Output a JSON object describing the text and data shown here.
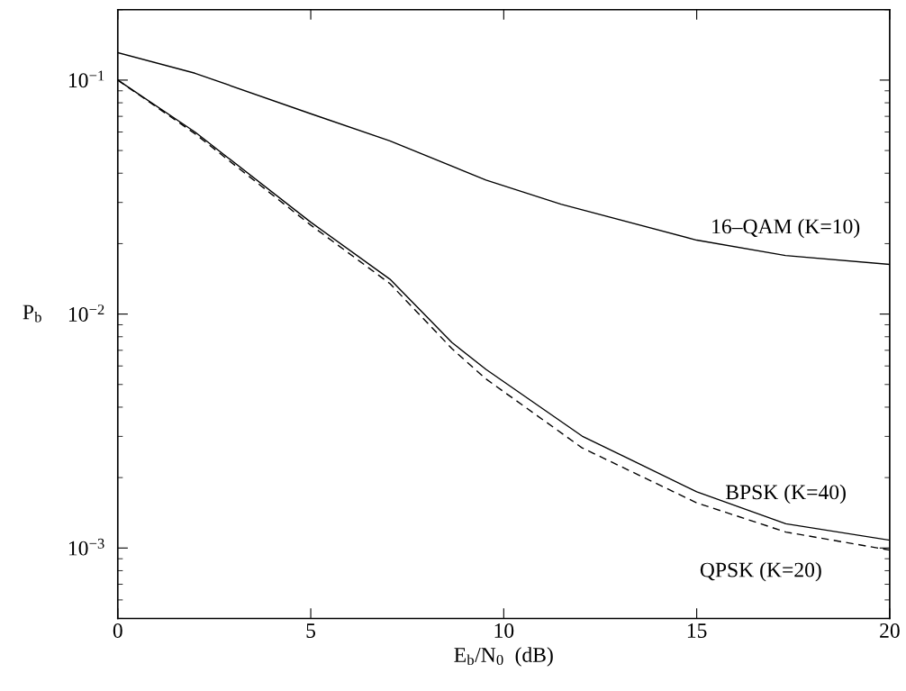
{
  "chart_data": {
    "type": "line",
    "xlabel": "E$_{b}$/N$_{0}$  (dB)",
    "ylabel": "P$_{b}$",
    "log": "y",
    "xlim": [
      0,
      20
    ],
    "xticks": [
      0,
      5,
      10,
      15,
      20
    ],
    "ylim": [
      0.0005,
      0.2
    ],
    "yticks": [
      {
        "value": 0.1,
        "label": "10$^{−1}$"
      },
      {
        "value": 0.01,
        "label": "10$^{−2}$"
      },
      {
        "value": 0.001,
        "label": "10$^{−3}$"
      }
    ],
    "grid": false,
    "legend": false,
    "marker": "none",
    "x": [
      0,
      2,
      5,
      7.05,
      8.66,
      9.54,
      12.03,
      15,
      17.31,
      20
    ],
    "series": [
      {
        "name": "16–QAM (K=10)",
        "color": "#000000",
        "line_style": "solid",
        "x": [
          0,
          2,
          5,
          7.05,
          9.54,
          11.48,
          15,
          17.3,
          20
        ],
        "values": [
          0.131,
          0.107,
          0.0718,
          0.055,
          0.0374,
          0.0295,
          0.0207,
          0.0178,
          0.0163
        ]
      },
      {
        "name": "BPSK (K=40)",
        "color": "#000000",
        "line_style": "solid",
        "values": [
          0.1,
          0.06,
          0.0247,
          0.0141,
          0.00755,
          0.0058,
          0.00301,
          0.00174,
          0.00127,
          0.00108
        ]
      },
      {
        "name": "QPSK (K=20)",
        "color": "#000000",
        "line_style": "dashed",
        "values": [
          0.1,
          0.059,
          0.024,
          0.0135,
          0.00711,
          0.00528,
          0.00268,
          0.00156,
          0.00117,
          0.00098
        ]
      }
    ]
  }
}
